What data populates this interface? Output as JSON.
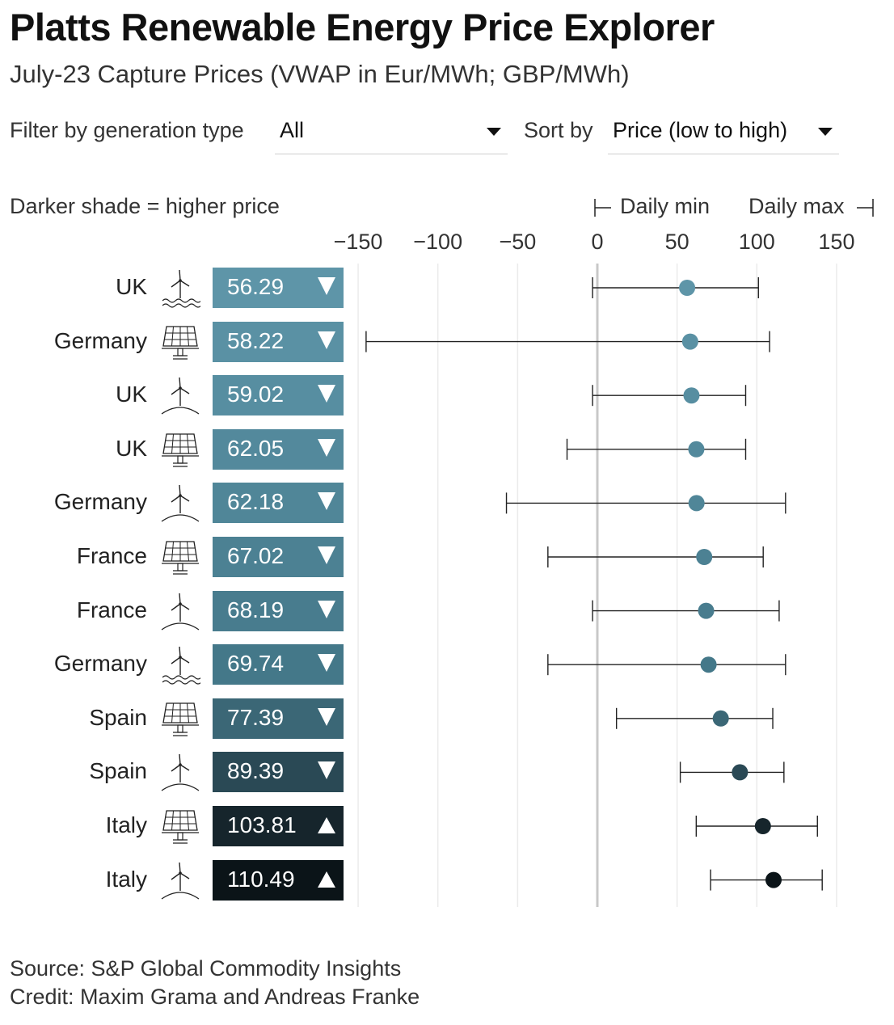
{
  "header": {
    "title": "Platts Renewable Energy Price Explorer",
    "subtitle": "July-23 Capture Prices (VWAP in Eur/MWh; GBP/MWh)"
  },
  "controls": {
    "filter_label": "Filter by generation type",
    "filter_value": "All",
    "sort_label": "Sort by",
    "sort_value": "Price (low to high)"
  },
  "legend": {
    "shade_note": "Darker shade = higher price",
    "daily_min": "Daily min",
    "daily_max": "Daily max"
  },
  "chart_data": {
    "type": "dot-range",
    "x_ticks": [
      "−150",
      "−100",
      "−50",
      "0",
      "50",
      "100",
      "150"
    ],
    "x_tick_values": [
      -150,
      -100,
      -50,
      0,
      50,
      100,
      150
    ],
    "xlim": [
      -150,
      170
    ],
    "grid": true,
    "rows": [
      {
        "country": "UK",
        "type": "offshore-wind",
        "label": "56.29",
        "value": 56.29,
        "min": -3,
        "max": 101,
        "direction": "down",
        "color": "#5e95a8"
      },
      {
        "country": "Germany",
        "type": "solar",
        "label": "58.22",
        "value": 58.22,
        "min": -145,
        "max": 108,
        "direction": "down",
        "color": "#5a91a4"
      },
      {
        "country": "UK",
        "type": "onshore-wind",
        "label": "59.02",
        "value": 59.02,
        "min": -3,
        "max": 93,
        "direction": "down",
        "color": "#578ea1"
      },
      {
        "country": "UK",
        "type": "solar",
        "label": "62.05",
        "value": 62.05,
        "min": -19,
        "max": 93,
        "direction": "down",
        "color": "#53899c"
      },
      {
        "country": "Germany",
        "type": "onshore-wind",
        "label": "62.18",
        "value": 62.18,
        "min": -57,
        "max": 118,
        "direction": "down",
        "color": "#508698"
      },
      {
        "country": "France",
        "type": "solar",
        "label": "67.02",
        "value": 67.02,
        "min": -31,
        "max": 104,
        "direction": "down",
        "color": "#4c8193"
      },
      {
        "country": "France",
        "type": "onshore-wind",
        "label": "68.19",
        "value": 68.19,
        "min": -3,
        "max": 114,
        "direction": "down",
        "color": "#487c8e"
      },
      {
        "country": "Germany",
        "type": "offshore-wind",
        "label": "69.74",
        "value": 69.74,
        "min": -31,
        "max": 118,
        "direction": "down",
        "color": "#447889"
      },
      {
        "country": "Spain",
        "type": "solar",
        "label": "77.39",
        "value": 77.39,
        "min": 12,
        "max": 110,
        "direction": "down",
        "color": "#3b6776"
      },
      {
        "country": "Spain",
        "type": "onshore-wind",
        "label": "89.39",
        "value": 89.39,
        "min": 52,
        "max": 117,
        "direction": "down",
        "color": "#2a4955"
      },
      {
        "country": "Italy",
        "type": "solar",
        "label": "103.81",
        "value": 103.81,
        "min": 62,
        "max": 138,
        "direction": "up",
        "color": "#16252c"
      },
      {
        "country": "Italy",
        "type": "onshore-wind",
        "label": "110.49",
        "value": 110.49,
        "min": 71,
        "max": 141,
        "direction": "up",
        "color": "#0b1418"
      }
    ]
  },
  "footer": {
    "source": "Source: S&P Global Commodity Insights",
    "credit": "Credit: Maxim Grama and Andreas Franke"
  }
}
